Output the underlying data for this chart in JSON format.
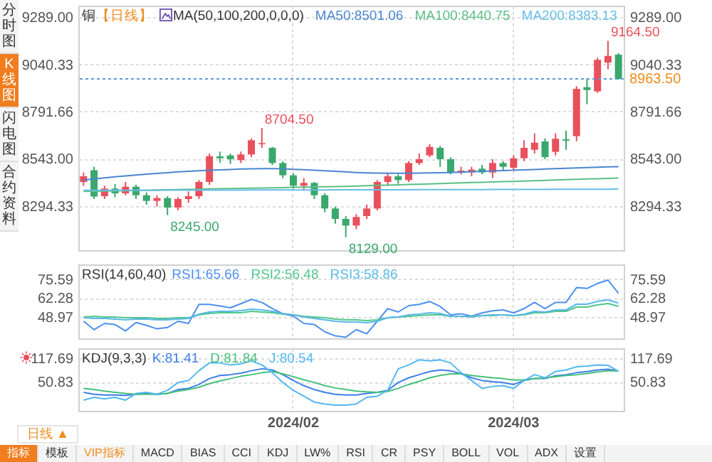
{
  "chart_data": [
    {
      "type": "candlestick",
      "title": "铜",
      "subtitle": "【日线】",
      "annotations": [
        "MA(50,100,200,0,0,0)",
        "8704.50",
        "9164.50",
        "8245.00",
        "8129.00"
      ],
      "categories": [
        null,
        null,
        null,
        null,
        null,
        null,
        null,
        null,
        null,
        null,
        null,
        null,
        null,
        null,
        null,
        null,
        null,
        null,
        null,
        null,
        "2024/02",
        null,
        null,
        null,
        null,
        null,
        null,
        null,
        null,
        null,
        null,
        null,
        null,
        null,
        null,
        null,
        null,
        null,
        null,
        null,
        null,
        "2024/03",
        null,
        null,
        null,
        null,
        null,
        null,
        null,
        null,
        null,
        null
      ],
      "ohlc": [
        [
          8420,
          8470,
          8400,
          8450
        ],
        [
          8482,
          8500,
          8330,
          8343
        ],
        [
          8345,
          8400,
          8330,
          8385
        ],
        [
          8385,
          8410,
          8340,
          8360
        ],
        [
          8360,
          8420,
          8350,
          8395
        ],
        [
          8395,
          8405,
          8330,
          8350
        ],
        [
          8350,
          8365,
          8300,
          8320
        ],
        [
          8320,
          8350,
          8290,
          8335
        ],
        [
          8335,
          8345,
          8245,
          8285
        ],
        [
          8285,
          8340,
          8270,
          8330
        ],
        [
          8330,
          8370,
          8310,
          8345
        ],
        [
          8345,
          8430,
          8330,
          8420
        ],
        [
          8420,
          8570,
          8405,
          8556
        ],
        [
          8555,
          8580,
          8520,
          8545
        ],
        [
          8560,
          8570,
          8515,
          8540
        ],
        [
          8535,
          8580,
          8520,
          8565
        ],
        [
          8565,
          8650,
          8550,
          8640
        ],
        [
          8620,
          8704.5,
          8600,
          8625
        ],
        [
          8600,
          8605,
          8510,
          8520
        ],
        [
          8520,
          8530,
          8440,
          8455
        ],
        [
          8455,
          8465,
          8385,
          8400
        ],
        [
          8400,
          8440,
          8380,
          8415
        ],
        [
          8415,
          8420,
          8330,
          8350
        ],
        [
          8350,
          8360,
          8260,
          8280
        ],
        [
          8280,
          8290,
          8200,
          8225
        ],
        [
          8225,
          8240,
          8129,
          8190
        ],
        [
          8190,
          8250,
          8170,
          8235
        ],
        [
          8240,
          8300,
          8225,
          8280
        ],
        [
          8280,
          8430,
          8270,
          8420
        ],
        [
          8420,
          8470,
          8400,
          8450
        ],
        [
          8450,
          8460,
          8410,
          8430
        ],
        [
          8430,
          8530,
          8420,
          8520
        ],
        [
          8520,
          8570,
          8510,
          8540
        ],
        [
          8560,
          8620,
          8550,
          8605
        ],
        [
          8600,
          8610,
          8500,
          8540
        ],
        [
          8540,
          8550,
          8460,
          8470
        ],
        [
          8470,
          8500,
          8460,
          8480
        ],
        [
          8470,
          8500,
          8450,
          8485
        ],
        [
          8490,
          8510,
          8460,
          8470
        ],
        [
          8470,
          8540,
          8440,
          8520
        ],
        [
          8520,
          8530,
          8480,
          8500
        ],
        [
          8495,
          8560,
          8480,
          8545
        ],
        [
          8545,
          8640,
          8530,
          8600
        ],
        [
          8590,
          8676,
          8570,
          8627
        ],
        [
          8634,
          8650,
          8540,
          8551
        ],
        [
          8579,
          8676,
          8560,
          8648
        ],
        [
          8645,
          8690,
          8590,
          8638
        ],
        [
          8662,
          8925,
          8635,
          8911
        ],
        [
          8920,
          8965,
          8830,
          8905
        ],
        [
          8898,
          9075,
          8890,
          9064
        ],
        [
          9050,
          9164.5,
          9015,
          9085
        ],
        [
          9092,
          9100,
          8960,
          8963.5
        ]
      ],
      "colors": [
        "#e8505b",
        "#3aa76d",
        "#e8505b",
        "#3aa76d",
        "#e8505b",
        "#3aa76d",
        "#3aa76d",
        "#e8505b",
        "#3aa76d",
        "#e8505b",
        "#e8505b",
        "#e8505b",
        "#e8505b",
        "#3aa76d",
        "#3aa76d",
        "#e8505b",
        "#e8505b",
        "#e8505b",
        "#3aa76d",
        "#3aa76d",
        "#3aa76d",
        "#e8505b",
        "#3aa76d",
        "#3aa76d",
        "#3aa76d",
        "#3aa76d",
        "#e8505b",
        "#e8505b",
        "#e8505b",
        "#e8505b",
        "#3aa76d",
        "#e8505b",
        "#e8505b",
        "#e8505b",
        "#3aa76d",
        "#3aa76d",
        "#e8505b",
        "#e8505b",
        "#3aa76d",
        "#e8505b",
        "#3aa76d",
        "#e8505b",
        "#e8505b",
        "#e8505b",
        "#3aa76d",
        "#e8505b",
        "#3aa76d",
        "#e8505b",
        "#3aa76d",
        "#e8505b",
        "#e8505b",
        "#3aa76d"
      ],
      "series": [
        {
          "name": "MA50:8501.06",
          "color": "#4a86d0",
          "type": "line",
          "values": [
            8430,
            8436,
            8442,
            8447,
            8452,
            8457,
            8461,
            8465,
            8469,
            8473,
            8476,
            8479,
            8482,
            8484,
            8486,
            8488,
            8489,
            8490,
            8490,
            8489,
            8487,
            8485,
            8482,
            8479,
            8476,
            8473,
            8470,
            8468,
            8467,
            8466,
            8466,
            8466,
            8467,
            8468,
            8469,
            8470,
            8472,
            8474,
            8476,
            8478,
            8480,
            8482,
            8484,
            8486,
            8488,
            8490,
            8492,
            8494,
            8496,
            8498,
            8500,
            8501.06
          ]
        },
        {
          "name": "MA100:8440.75",
          "color": "#5bbf86",
          "type": "line",
          "values": [
            8370,
            8371,
            8372,
            8373,
            8374,
            8375,
            8376,
            8378,
            8379,
            8380,
            8381,
            8382,
            8383,
            8384,
            8385,
            8386,
            8387,
            8388,
            8389,
            8390,
            8392,
            8393,
            8394,
            8395,
            8396,
            8397,
            8398,
            8400,
            8402,
            8403,
            8405,
            8407,
            8408,
            8410,
            8412,
            8413,
            8415,
            8417,
            8418,
            8420,
            8422,
            8423,
            8425,
            8427,
            8428,
            8430,
            8432,
            8434,
            8436,
            8437,
            8439,
            8440.75
          ]
        },
        {
          "name": "MA200:8383.13",
          "color": "#67bde6",
          "type": "line",
          "values": [
            8376,
            8376,
            8376,
            8376,
            8376,
            8376,
            8376,
            8376,
            8377,
            8377,
            8377,
            8377,
            8377,
            8377,
            8377,
            8377,
            8378,
            8378,
            8378,
            8378,
            8378,
            8378,
            8378,
            8378,
            8379,
            8379,
            8379,
            8379,
            8379,
            8379,
            8379,
            8379,
            8380,
            8380,
            8380,
            8380,
            8380,
            8380,
            8380,
            8381,
            8381,
            8381,
            8381,
            8381,
            8381,
            8382,
            8382,
            8382,
            8382,
            8382,
            8382,
            8383.13
          ]
        }
      ],
      "ylim": [
        8060,
        9350
      ],
      "yticks": [
        8294.33,
        {
          "value": 8543,
          "label": "8543.00"
        },
        8791.66,
        9040.33,
        {
          "value": 9289,
          "label": "9289.00"
        }
      ],
      "y2lim": [
        8060,
        9350
      ],
      "y2ticks": [
        8294.33,
        {
          "value": 8543,
          "label": "8543.00"
        },
        8791.66,
        9040.33,
        {
          "value": 9289,
          "label": "9289.00"
        }
      ],
      "ref_lines": [
        {
          "axis": "y",
          "value": 8963.5,
          "label": "8963.50",
          "color": "#5b9bd5",
          "line_style": "dotted"
        }
      ],
      "grid": true,
      "legend": "top",
      "tick_labels": "y"
    },
    {
      "type": "line",
      "title": "RSI(14,60,40)",
      "categories": [
        null,
        null,
        null,
        null,
        null,
        null,
        null,
        null,
        null,
        null,
        null,
        null,
        null,
        null,
        null,
        null,
        null,
        null,
        null,
        null,
        "2024/02",
        null,
        null,
        null,
        null,
        null,
        null,
        null,
        null,
        null,
        null,
        null,
        null,
        null,
        null,
        null,
        null,
        null,
        null,
        null,
        null,
        "2024/03",
        null,
        null,
        null,
        null,
        null,
        null,
        null,
        null,
        null,
        null
      ],
      "series": [
        {
          "name": "RSI1:65.66",
          "color": "#4d8ff0",
          "values": [
            46.0,
            40.1,
            44.5,
            43.7,
            39.2,
            45.1,
            43.1,
            40.7,
            41.6,
            46.0,
            44.5,
            57.9,
            57.9,
            56.7,
            55.5,
            58.4,
            61.4,
            59.3,
            54.9,
            51.3,
            49.6,
            44.5,
            43.7,
            38.6,
            35.7,
            34.8,
            40.1,
            37.2,
            46.0,
            54.9,
            52.5,
            57.0,
            57.9,
            59.9,
            56.4,
            50.5,
            51.3,
            49.6,
            51.9,
            53.4,
            54.0,
            51.9,
            54.9,
            59.3,
            54.9,
            59.3,
            59.3,
            69.7,
            69.1,
            72.6,
            75.0,
            65.66
          ]
        },
        {
          "name": "RSI2:56.48",
          "color": "#4fc78a",
          "values": [
            49,
            49.5,
            49,
            49,
            48.5,
            48.5,
            48.5,
            48,
            48,
            48.5,
            48.5,
            50.5,
            51.5,
            52,
            52,
            52,
            53,
            52.5,
            52,
            51,
            50.5,
            49.5,
            49,
            48.5,
            47.5,
            47,
            47,
            46.5,
            47,
            48.5,
            49,
            49.5,
            50,
            50.5,
            50.5,
            49.5,
            49.5,
            49.5,
            50,
            50,
            50.5,
            50,
            50.5,
            52,
            52,
            53,
            53,
            56,
            56,
            57.5,
            58.5,
            56.48
          ]
        },
        {
          "name": "RSI3:58.86",
          "color": "#5ab8e8",
          "values": [
            48.5,
            48,
            48,
            47.5,
            47,
            47.5,
            47.5,
            47,
            47,
            47.5,
            48,
            51,
            52.5,
            53,
            53,
            53.5,
            54.5,
            54,
            53,
            51.5,
            50.5,
            49,
            48,
            47,
            46,
            45.5,
            45.5,
            45,
            46,
            48.5,
            49,
            50.5,
            51,
            52,
            51.5,
            49.5,
            49.5,
            49,
            50,
            50.5,
            50.5,
            50,
            51,
            53,
            52.5,
            54,
            54,
            58,
            58,
            60,
            61,
            58.86
          ]
        }
      ],
      "ylim": [
        34,
        86
      ],
      "yticks": [
        48.97,
        62.28,
        75.59
      ],
      "y2lim": [
        34,
        86
      ],
      "y2ticks": [
        48.97,
        62.28,
        75.59
      ],
      "grid": true,
      "legend": "top left",
      "tick_labels": "y"
    },
    {
      "type": "line",
      "title": "KDJ(9,3,3)",
      "categories": [
        null,
        null,
        null,
        null,
        null,
        null,
        null,
        null,
        null,
        null,
        null,
        null,
        null,
        null,
        null,
        null,
        null,
        null,
        null,
        null,
        "2024/02",
        null,
        null,
        null,
        null,
        null,
        null,
        null,
        null,
        null,
        null,
        null,
        null,
        null,
        null,
        null,
        null,
        null,
        null,
        null,
        null,
        "2024/03",
        null,
        null,
        null,
        null,
        null,
        null,
        null,
        null,
        null,
        null
      ],
      "series": [
        {
          "name": "K:81.41",
          "color": "#3d7ee8",
          "values": [
            20.7,
            15.2,
            13,
            13,
            12,
            15.2,
            17.4,
            15.2,
            17.4,
            28.5,
            31.9,
            43,
            59.8,
            68.7,
            70.9,
            75.3,
            82,
            87.6,
            84.3,
            70.9,
            54.2,
            39.7,
            28.5,
            20.7,
            15.2,
            13,
            13,
            17.4,
            20.7,
            26.3,
            48.6,
            62,
            70.9,
            79.8,
            84.3,
            82,
            73.1,
            62,
            54.2,
            50.8,
            48.6,
            43,
            54.2,
            59.8,
            59.8,
            67.5,
            70.9,
            76.5,
            79.8,
            84.3,
            86.5,
            81.41
          ]
        },
        {
          "name": "D:81.84",
          "color": "#45c07a",
          "values": [
            31.9,
            28.5,
            24.1,
            20.7,
            17.4,
            15.2,
            15.2,
            15.2,
            17.4,
            24.1,
            28.5,
            35.2,
            45.3,
            53.1,
            59.8,
            66.4,
            70.9,
            76.5,
            79.8,
            73.1,
            65.3,
            56.4,
            48.6,
            39.7,
            33,
            28.5,
            24.1,
            21.9,
            20.7,
            23,
            31.9,
            43,
            52,
            62,
            68.7,
            73.1,
            73.1,
            68.7,
            65.3,
            62,
            59.8,
            55.3,
            56.4,
            59.8,
            62,
            65.3,
            68.7,
            70.9,
            74.2,
            78.7,
            82,
            81.84
          ]
        },
        {
          "name": "J:80.54",
          "color": "#52b8f0",
          "values": [
            -1.5,
            6.3,
            1.8,
            6.3,
            -1.5,
            17.4,
            20.7,
            15.2,
            26.3,
            48.6,
            54.2,
            82,
            104.3,
            104.3,
            98.7,
            102.1,
            109.9,
            98.7,
            76.5,
            48.6,
            26.3,
            9.6,
            -7.1,
            -12.7,
            -16,
            -16,
            -12.7,
            6.3,
            9.6,
            26.3,
            87.6,
            98.7,
            113.2,
            109.9,
            113.2,
            104.3,
            76.5,
            54.2,
            31.9,
            37.5,
            39.7,
            31.9,
            54.2,
            70.9,
            62,
            79.8,
            84.3,
            93.2,
            95.4,
            98.7,
            97.6,
            80.54
          ]
        }
      ],
      "ylim": [
        -32,
        146
      ],
      "yticks": [
        50.83,
        117.69
      ],
      "y2lim": [
        -32,
        146
      ],
      "y2ticks": [
        50.83,
        117.69
      ],
      "grid": true,
      "legend": "top left"
    },
    {
      "type": "other",
      "annotations": [
        "分时图",
        "K线图",
        "闪电图",
        "合约资料"
      ]
    },
    {
      "type": "other",
      "annotations": [
        "日线 ▲",
        "指标",
        "模板",
        "VIP指标",
        "MACD",
        "BIAS",
        "CCI",
        "KDJ",
        "LW%",
        "RSI",
        "CR",
        "PSY",
        "BOLL",
        "VOL",
        "ADX",
        "设置"
      ]
    }
  ]
}
